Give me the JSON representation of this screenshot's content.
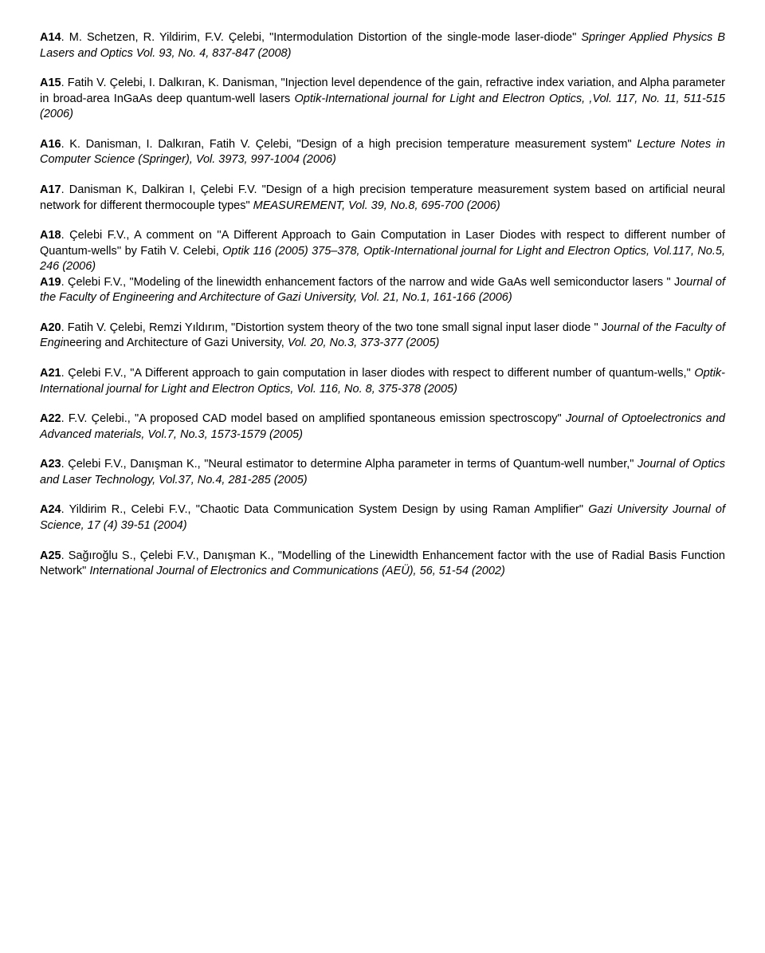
{
  "refs": [
    {
      "id": "A14",
      "plain1": ". M. Schetzen, R. Yildirim, F.V. Çelebi, \"Intermodulation Distortion of the single-mode laser-diode\" ",
      "italic1": "Springer Applied Physics B Lasers and Optics Vol. 93, No. 4, 837-847 (2008)"
    },
    {
      "id": "A15",
      "plain1": ". Fatih V. Çelebi, I. Dalkıran, K. Danisman, \"Injection level dependence of the gain, refractive index variation, and Alpha parameter in broad-area InGaAs deep quantum-well lasers ",
      "italic1": "Optik-International journal for Light and Electron Optics, ,Vol. 117, No. 11, 511-515 (2006)"
    },
    {
      "id": "A16",
      "plain1": ". K. Danisman, I. Dalkıran, Fatih V. Çelebi, \"Design of a high precision temperature measurement system\" ",
      "italic1": "Lecture Notes in Computer Science (Springer), Vol. 3973, 997-1004 (2006)"
    },
    {
      "id": "A17",
      "plain1": ". Danisman K, Dalkiran I, Çelebi F.V. \"Design of a high precision temperature measurement system based on artificial neural network for different thermocouple types\" ",
      "italic1": "MEASUREMENT, Vol. 39, No.8, 695-700 (2006)"
    },
    {
      "id": "A18",
      "plain1": ". Çelebi F.V., A comment on ''A Different Approach to Gain Computation in Laser Diodes with respect to different number of Quantum-wells'' by Fatih V. Celebi, ",
      "italic1": "Optik 116 (2005) 375–378, Optik-International journal for Light and Electron Optics, Vol.117, No.5, 246 (2006)",
      "nobreak": true
    },
    {
      "id": "A19",
      "plain1": ". Çelebi F.V., \"Modeling of the linewidth enhancement factors of the narrow and wide GaAs well semiconductor lasers \" J",
      "italic1": "ournal of the Faculty of Engineering and Architecture of Gazi University, Vol. 21, No.1, 161-166 (2006)"
    },
    {
      "id": "A20",
      "plain1": ". Fatih V. Çelebi, Remzi Yıldırım, \"Distortion system theory of the two tone small signal input laser diode \" J",
      "italic1": "ournal of the Faculty of Engi",
      "plain2": "neering and Architecture of Gazi University, ",
      "italic2": "Vol. 20, No.3, 373-377 (2005)"
    },
    {
      "id": "A21",
      "plain1": ". Çelebi F.V., \"A Different approach to gain computation in laser diodes with respect to different number of quantum-wells,\" ",
      "italic1": "Optik-International journal for Light and Electron Optics, Vol. 116, No. 8, 375-378 (2005)"
    },
    {
      "id": "A22",
      "plain1": ". F.V. Çelebi., \"A proposed CAD model based on amplified spontaneous emission spectroscopy\" ",
      "italic1": "Journal of Optoelectronics and Advanced materials, Vol.7, No.3, 1573-1579 (2005)"
    },
    {
      "id": "A23",
      "plain1": ". Çelebi F.V., Danışman K., \"Neural estimator to determine Alpha parameter in terms of Quantum-well number,\" ",
      "italic1": "Journal of Optics and Laser Technology, Vol.37, No.4, 281-285 (2005)"
    },
    {
      "id": "A24",
      "plain1": ". Yildirim R., Celebi F.V., \"Chaotic Data Communication System Design by using Raman Amplifier\" ",
      "italic1": "Gazi University Journal of Science, 17 (4) 39-51 (2004)"
    },
    {
      "id": "A25",
      "plain1": ". Sağıroğlu S., Çelebi F.V., Danışman K., \"Modelling of the Linewidth Enhancement factor with the use of Radial Basis Function Network\" ",
      "italic1": "International Journal of Electronics and Communications (AEÜ), 56, 51-54 (2002)"
    }
  ]
}
